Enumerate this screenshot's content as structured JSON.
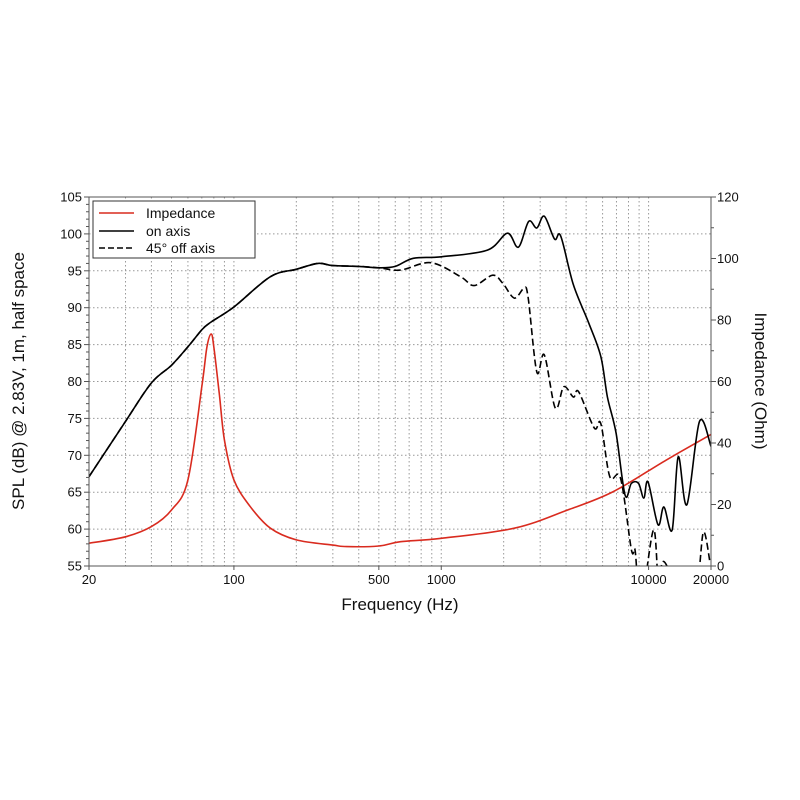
{
  "chart_data": {
    "type": "line",
    "xlabel": "Frequency (Hz)",
    "ylabel": "SPL (dB) @ 2.83V, 1m, half space",
    "y2label": "Impedance (Ohm)",
    "xscale": "log",
    "xlim": [
      20,
      20000
    ],
    "ylim": [
      55,
      105
    ],
    "y2lim": [
      0,
      120
    ],
    "grid": true,
    "legend_position": "top-left",
    "x_ticks": [
      20,
      100,
      500,
      1000,
      10000,
      20000
    ],
    "x_tick_labels": [
      "20",
      "100",
      "500",
      "1000",
      "10000",
      "20000"
    ],
    "y_ticks": [
      55,
      60,
      65,
      70,
      75,
      80,
      85,
      90,
      95,
      100,
      105
    ],
    "y_tick_labels": [
      "55",
      "60",
      "65",
      "70",
      "75",
      "80",
      "85",
      "90",
      "95",
      "100",
      "105"
    ],
    "y2_ticks": [
      0,
      20,
      40,
      60,
      80,
      100,
      120
    ],
    "y2_tick_labels": [
      "0",
      "20",
      "40",
      "60",
      "80",
      "100",
      "120"
    ],
    "series": [
      {
        "name": "Impedance",
        "axis": "right",
        "color": "#d92b1f",
        "style": "solid",
        "x": [
          20,
          30,
          40,
          50,
          60,
          70,
          74,
          77.6,
          80,
          85,
          90,
          100,
          120,
          150,
          200,
          300,
          350,
          500,
          636,
          1000,
          2250,
          4070,
          6760,
          12200,
          20000
        ],
        "y": [
          7.4,
          9.5,
          12.8,
          18.2,
          28,
          58.3,
          71,
          75.4,
          71.3,
          56,
          41,
          28,
          19.3,
          12.3,
          8.5,
          6.8,
          6.3,
          6.5,
          7.9,
          9.0,
          12.3,
          18.2,
          24.2,
          34.5,
          42.8
        ]
      },
      {
        "name": "on axis",
        "axis": "left",
        "color": "#000000",
        "style": "solid",
        "x": [
          20,
          30,
          40,
          50,
          60,
          70,
          77,
          100,
          150,
          200,
          254,
          300,
          400,
          500,
          600,
          733,
          1000,
          1670,
          2084,
          2355,
          2640,
          2890,
          3140,
          3520,
          3770,
          4340,
          5150,
          5880,
          6330,
          6970,
          7700,
          8260,
          8940,
          9480,
          9940,
          11100,
          11850,
          13000,
          13900,
          15300,
          17600,
          20000
        ],
        "y": [
          67.1,
          74.6,
          79.8,
          82.2,
          84.7,
          87,
          88,
          90.1,
          94.2,
          95.2,
          96,
          95.7,
          95.6,
          95.4,
          95.6,
          96.7,
          96.9,
          97.8,
          100.1,
          98.2,
          101.7,
          100.8,
          102.4,
          99.3,
          99.7,
          93.1,
          87.9,
          83.4,
          77.9,
          73.0,
          64.6,
          66.2,
          66.2,
          64.2,
          66.4,
          60.6,
          63.0,
          59.9,
          69.8,
          63.3,
          74.6,
          71.2
        ]
      },
      {
        "name": "45° off axis",
        "axis": "left",
        "color": "#000000",
        "style": "dashed",
        "x": [
          20,
          30,
          40,
          50,
          60,
          70,
          77,
          100,
          150,
          200,
          254,
          300,
          400,
          500,
          636,
          890,
          1240,
          1440,
          1770,
          1980,
          2250,
          2500,
          2620,
          2890,
          3140,
          3550,
          3900,
          4340,
          4600,
          5470,
          5880,
          6500,
          7320,
          8260,
          8600,
          8940,
          9480,
          10600,
          11200,
          11850,
          15000,
          17200,
          18400,
          19800
        ],
        "y": [
          67.1,
          74.6,
          79.8,
          82.2,
          84.7,
          87,
          88,
          90.1,
          94.2,
          95.2,
          96,
          95.7,
          95.6,
          95.4,
          95.1,
          96.1,
          94.2,
          93.0,
          94.4,
          93.3,
          91.3,
          92.6,
          91.5,
          81.3,
          83.6,
          76.4,
          79.3,
          77.9,
          78.6,
          73.7,
          74.3,
          67.1,
          66.9,
          57.2,
          57.2,
          52,
          52,
          59.9,
          52,
          55.6,
          50,
          53,
          59.6,
          55.4
        ]
      }
    ]
  }
}
